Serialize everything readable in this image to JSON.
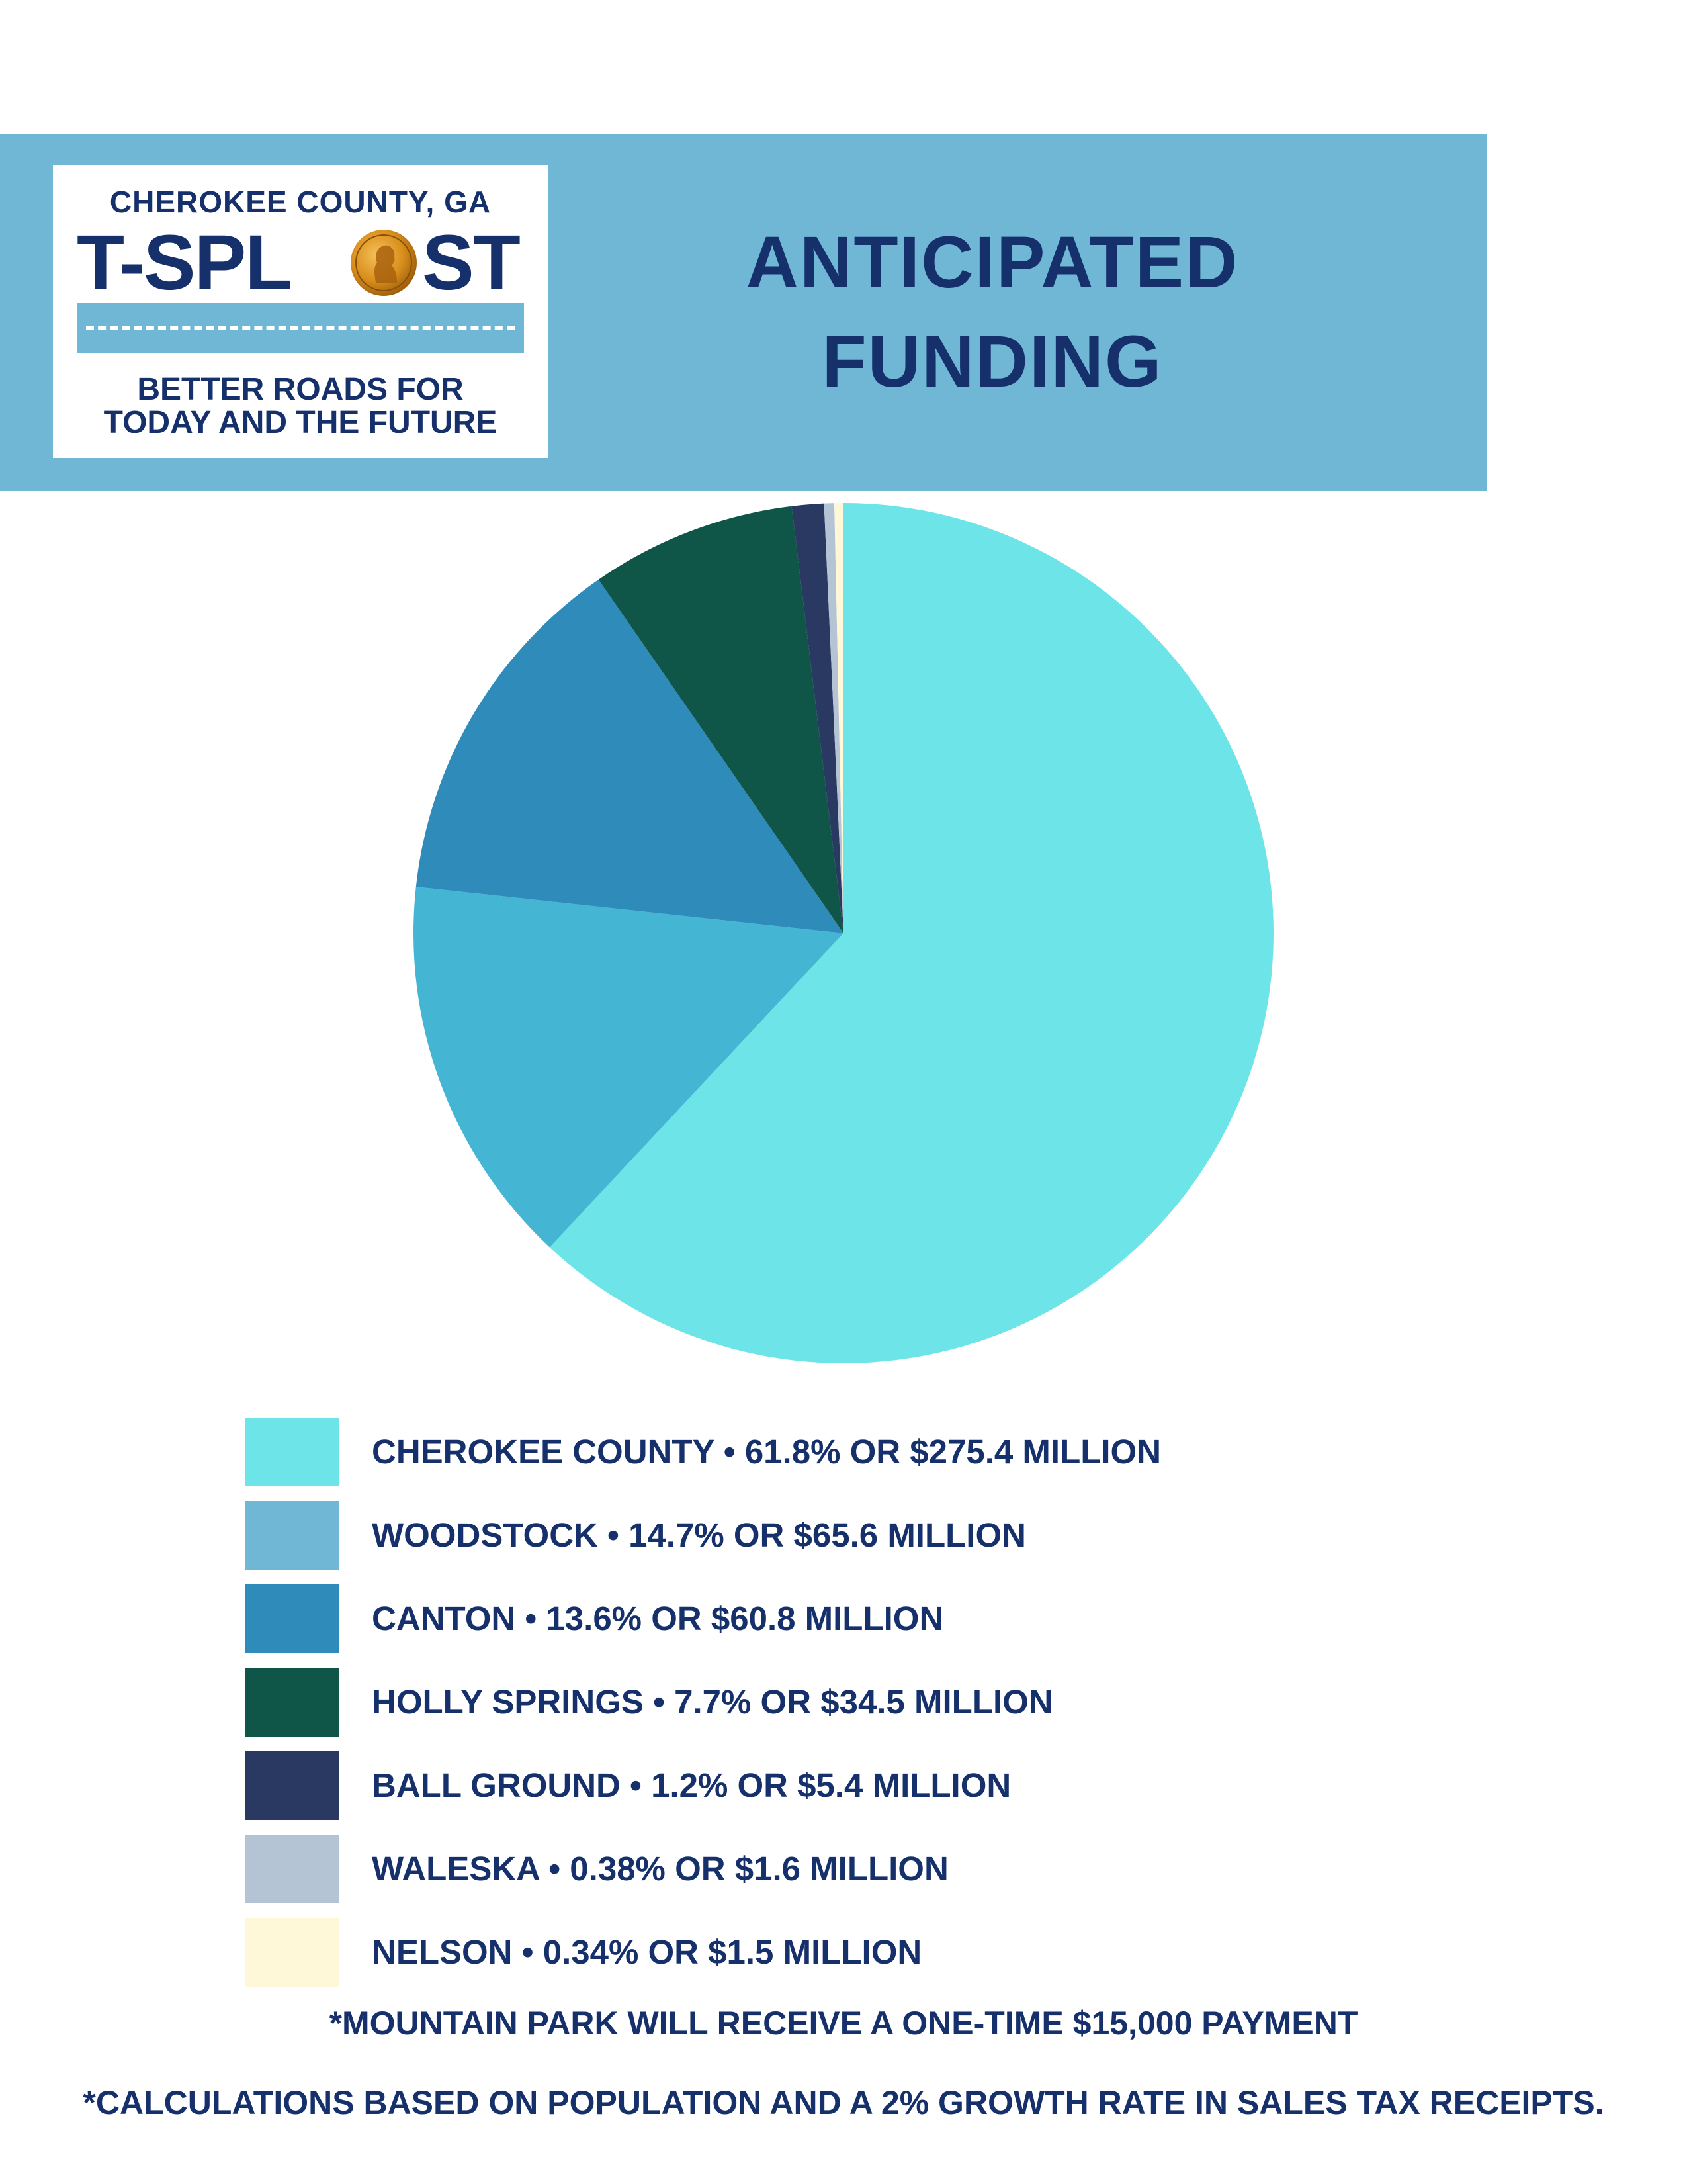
{
  "header": {
    "logo": {
      "county": "CHEROKEE COUNTY, GA",
      "brand_left": "T-SPL",
      "brand_right": "ST",
      "tagline_line1": "BETTER ROADS FOR",
      "tagline_line2": "TODAY AND THE FUTURE",
      "banner_color": "#6fb7d4",
      "coin_icon": "penny-coin-icon"
    },
    "title_line1": "ANTICIPATED",
    "title_line2": "FUNDING"
  },
  "chart_data": {
    "type": "pie",
    "title": "ANTICIPATED FUNDING",
    "start_angle_deg": 0,
    "direction": "clockwise-from-top",
    "slices": [
      {
        "name": "CHEROKEE COUNTY",
        "percent": 61.8,
        "amount_million": 275.4,
        "color": "#6ce4e8",
        "label": "CHEROKEE COUNTY • 61.8% OR $275.4 MILLION"
      },
      {
        "name": "WOODSTOCK",
        "percent": 14.7,
        "amount_million": 65.6,
        "color": "#44b6d4",
        "legend_color": "#6fb7d4",
        "label": "WOODSTOCK • 14.7% OR $65.6 MILLION"
      },
      {
        "name": "CANTON",
        "percent": 13.6,
        "amount_million": 60.8,
        "color": "#2e8bba",
        "label": "CANTON • 13.6% OR $60.8 MILLION"
      },
      {
        "name": "HOLLY SPRINGS",
        "percent": 7.7,
        "amount_million": 34.5,
        "color": "#0f5548",
        "label": "HOLLY SPRINGS • 7.7% OR $34.5 MILLION"
      },
      {
        "name": "BALL GROUND",
        "percent": 1.2,
        "amount_million": 5.4,
        "color": "#293961",
        "label": "BALL GROUND • 1.2% OR $5.4 MILLION"
      },
      {
        "name": "WALESKA",
        "percent": 0.38,
        "amount_million": 1.6,
        "color": "#b5c4d4",
        "label": "WALESKA • 0.38% OR $1.6 MILLION"
      },
      {
        "name": "NELSON",
        "percent": 0.34,
        "amount_million": 1.5,
        "color": "#fff8d8",
        "label": "NELSON • 0.34% OR $1.5 MILLION"
      }
    ],
    "legend_position": "bottom"
  },
  "footnotes": {
    "mountain_park": "*MOUNTAIN PARK WILL RECEIVE A ONE-TIME $15,000 PAYMENT",
    "calculations": "*CALCULATIONS BASED ON POPULATION AND A 2% GROWTH RATE IN SALES TAX RECEIPTS."
  }
}
